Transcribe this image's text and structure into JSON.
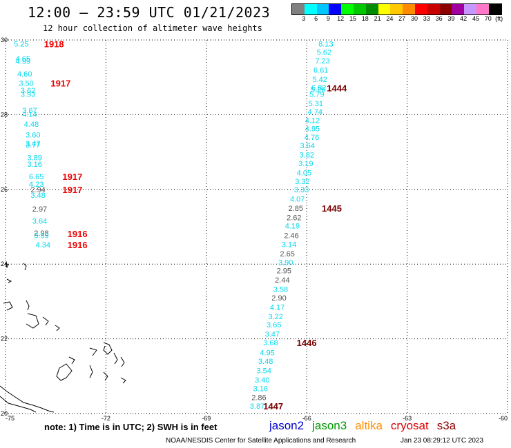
{
  "title": "12:00 – 23:59 UTC 01/21/2023",
  "subtitle": "12 hour collection of altimeter wave heights",
  "colorbar": {
    "colors": [
      "#808080",
      "#00ffff",
      "#00c8ff",
      "#0000ff",
      "#00ff00",
      "#00c800",
      "#008c00",
      "#ffff00",
      "#ffc800",
      "#ff8c00",
      "#ff0000",
      "#c80000",
      "#8c0000",
      "#a000a0",
      "#c896ff",
      "#ff78c8",
      "#000000"
    ],
    "labels": [
      "3",
      "6",
      "9",
      "12",
      "15",
      "18",
      "21",
      "24",
      "27",
      "30",
      "33",
      "36",
      "39",
      "42",
      "45",
      "70",
      "(ft)"
    ]
  },
  "axes": {
    "lon_ticks": [
      "-75",
      "-72",
      "-69",
      "-66",
      "-63",
      "-60"
    ],
    "lat_ticks": [
      "30",
      "28",
      "26",
      "24",
      "22",
      "20"
    ]
  },
  "tracks": {
    "east": [
      {
        "lon": -65.65,
        "lat": 29.9,
        "v": "8.13",
        "c": "cyan"
      },
      {
        "lon": -65.7,
        "lat": 29.68,
        "v": "5.62",
        "c": "cyan"
      },
      {
        "lon": -65.75,
        "lat": 29.45,
        "v": "7.23",
        "c": "cyan"
      },
      {
        "lon": -65.8,
        "lat": 29.2,
        "v": "6.61",
        "c": "cyan"
      },
      {
        "lon": -65.83,
        "lat": 28.95,
        "v": "5.42",
        "c": "cyan"
      },
      {
        "lon": -65.86,
        "lat": 28.73,
        "v": "6.82",
        "c": "cyan"
      },
      {
        "lon": -65.88,
        "lat": 28.68,
        "v": "5.26",
        "c": "cyan"
      },
      {
        "lon": -65.92,
        "lat": 28.55,
        "v": "5.79",
        "c": "cyan"
      },
      {
        "lon": -65.95,
        "lat": 28.3,
        "v": "5.31",
        "c": "cyan"
      },
      {
        "lon": -65.97,
        "lat": 28.08,
        "v": "4.74",
        "c": "cyan"
      },
      {
        "lon": -66.05,
        "lat": 27.85,
        "v": "4.12",
        "c": "cyan"
      },
      {
        "lon": -66.05,
        "lat": 27.63,
        "v": "4.95",
        "c": "cyan"
      },
      {
        "lon": -66.07,
        "lat": 27.4,
        "v": "4.76",
        "c": "cyan"
      },
      {
        "lon": -66.2,
        "lat": 27.18,
        "v": "3.64",
        "c": "cyan"
      },
      {
        "lon": -66.22,
        "lat": 26.93,
        "v": "3.82",
        "c": "cyan"
      },
      {
        "lon": -66.25,
        "lat": 26.7,
        "v": "3.19",
        "c": "cyan"
      },
      {
        "lon": -66.3,
        "lat": 26.45,
        "v": "4.05",
        "c": "cyan"
      },
      {
        "lon": -66.35,
        "lat": 26.22,
        "v": "3.32",
        "c": "cyan"
      },
      {
        "lon": -66.38,
        "lat": 26.0,
        "v": "3.33",
        "c": "cyan"
      },
      {
        "lon": -66.5,
        "lat": 25.75,
        "v": "4.07",
        "c": "cyan"
      },
      {
        "lon": -66.55,
        "lat": 25.5,
        "v": "2.85",
        "c": "gray"
      },
      {
        "lon": -66.6,
        "lat": 25.25,
        "v": "2.62",
        "c": "gray"
      },
      {
        "lon": -66.65,
        "lat": 25.03,
        "v": "4.19",
        "c": "cyan"
      },
      {
        "lon": -66.68,
        "lat": 24.77,
        "v": "2.46",
        "c": "gray"
      },
      {
        "lon": -66.75,
        "lat": 24.53,
        "v": "3.14",
        "c": "cyan"
      },
      {
        "lon": -66.8,
        "lat": 24.28,
        "v": "2.65",
        "c": "gray"
      },
      {
        "lon": -66.85,
        "lat": 24.05,
        "v": "3.90",
        "c": "cyan"
      },
      {
        "lon": -66.9,
        "lat": 23.83,
        "v": "2.95",
        "c": "gray"
      },
      {
        "lon": -66.95,
        "lat": 23.58,
        "v": "2.44",
        "c": "gray"
      },
      {
        "lon": -67.0,
        "lat": 23.33,
        "v": "3.58",
        "c": "cyan"
      },
      {
        "lon": -67.05,
        "lat": 23.1,
        "v": "2.90",
        "c": "gray"
      },
      {
        "lon": -67.1,
        "lat": 22.85,
        "v": "4.17",
        "c": "cyan"
      },
      {
        "lon": -67.15,
        "lat": 22.6,
        "v": "3.22",
        "c": "cyan"
      },
      {
        "lon": -67.2,
        "lat": 22.38,
        "v": "3.65",
        "c": "cyan"
      },
      {
        "lon": -67.25,
        "lat": 22.13,
        "v": "3.47",
        "c": "cyan"
      },
      {
        "lon": -67.3,
        "lat": 21.9,
        "v": "3.68",
        "c": "cyan"
      },
      {
        "lon": -67.4,
        "lat": 21.63,
        "v": "4.95",
        "c": "cyan"
      },
      {
        "lon": -67.45,
        "lat": 21.4,
        "v": "3.48",
        "c": "cyan"
      },
      {
        "lon": -67.5,
        "lat": 21.15,
        "v": "3.54",
        "c": "cyan"
      },
      {
        "lon": -67.55,
        "lat": 20.9,
        "v": "3.40",
        "c": "cyan"
      },
      {
        "lon": -67.6,
        "lat": 20.67,
        "v": "3.16",
        "c": "cyan"
      },
      {
        "lon": -67.65,
        "lat": 20.43,
        "v": "2.86",
        "c": "gray"
      },
      {
        "lon": -67.7,
        "lat": 20.2,
        "v": "3.87",
        "c": "cyan"
      }
    ],
    "west": [
      {
        "lon": -74.75,
        "lat": 29.9,
        "v": "5.25",
        "c": "cyan"
      },
      {
        "lon": -74.7,
        "lat": 29.5,
        "v": "4.65",
        "c": "cyan"
      },
      {
        "lon": -74.7,
        "lat": 29.44,
        "v": "4.99",
        "c": "cyan"
      },
      {
        "lon": -74.65,
        "lat": 29.1,
        "v": "4.60",
        "c": "cyan"
      },
      {
        "lon": -74.6,
        "lat": 28.85,
        "v": "3.50",
        "c": "cyan"
      },
      {
        "lon": -74.55,
        "lat": 28.65,
        "v": "3.62",
        "c": "cyan"
      },
      {
        "lon": -74.55,
        "lat": 28.55,
        "v": "3.93",
        "c": "cyan"
      },
      {
        "lon": -74.5,
        "lat": 28.12,
        "v": "3.67",
        "c": "cyan"
      },
      {
        "lon": -74.5,
        "lat": 28.02,
        "v": "4.14",
        "c": "cyan"
      },
      {
        "lon": -74.45,
        "lat": 27.75,
        "v": "4.48",
        "c": "cyan"
      },
      {
        "lon": -74.4,
        "lat": 27.46,
        "v": "3.60",
        "c": "cyan"
      },
      {
        "lon": -74.4,
        "lat": 27.23,
        "v": "3.47",
        "c": "cyan"
      },
      {
        "lon": -74.4,
        "lat": 27.2,
        "v": "3.77",
        "c": "cyan"
      },
      {
        "lon": -74.35,
        "lat": 26.85,
        "v": "3.89",
        "c": "cyan"
      },
      {
        "lon": -74.35,
        "lat": 26.68,
        "v": "3.16",
        "c": "cyan"
      },
      {
        "lon": -74.3,
        "lat": 26.35,
        "v": "6.65",
        "c": "cyan"
      },
      {
        "lon": -74.3,
        "lat": 26.14,
        "v": "4.23",
        "c": "cyan"
      },
      {
        "lon": -74.25,
        "lat": 26.0,
        "v": "2.94",
        "c": "gray"
      },
      {
        "lon": -74.25,
        "lat": 25.85,
        "v": "3.48",
        "c": "cyan"
      },
      {
        "lon": -74.2,
        "lat": 25.48,
        "v": "2.97",
        "c": "gray"
      },
      {
        "lon": -74.2,
        "lat": 25.16,
        "v": "3.64",
        "c": "cyan"
      },
      {
        "lon": -74.15,
        "lat": 24.83,
        "v": "2.98",
        "c": "gray"
      },
      {
        "lon": -74.15,
        "lat": 24.77,
        "v": "3.59",
        "c": "cyan"
      },
      {
        "lon": -74.1,
        "lat": 24.52,
        "v": "4.34",
        "c": "cyan"
      }
    ],
    "time_marks": [
      {
        "lon": -73.85,
        "lat": 29.9,
        "t": "1918",
        "c": "#ee0000"
      },
      {
        "lon": -73.65,
        "lat": 28.85,
        "t": "1917",
        "c": "#ee0000"
      },
      {
        "lon": -73.3,
        "lat": 26.35,
        "t": "1917",
        "c": "#ee0000"
      },
      {
        "lon": -73.3,
        "lat": 26.0,
        "t": "1917",
        "c": "#ee0000"
      },
      {
        "lon": -73.15,
        "lat": 24.82,
        "t": "1916",
        "c": "#ee0000"
      },
      {
        "lon": -73.15,
        "lat": 24.52,
        "t": "1916",
        "c": "#ee0000"
      },
      {
        "lon": -65.4,
        "lat": 28.72,
        "t": "1444",
        "c": "#7a0000"
      },
      {
        "lon": -65.55,
        "lat": 25.5,
        "t": "1445",
        "c": "#7a0000"
      },
      {
        "lon": -66.3,
        "lat": 21.9,
        "t": "1446",
        "c": "#7a0000"
      },
      {
        "lon": -67.3,
        "lat": 20.2,
        "t": "1447",
        "c": "#7a0000"
      }
    ]
  },
  "note": "note:  1) Time is in UTC;  2) SWH is in feet",
  "satellites": [
    {
      "name": "jason2",
      "color": "#0000cc"
    },
    {
      "name": "jason3",
      "color": "#009900"
    },
    {
      "name": "altika",
      "color": "#ff8c00"
    },
    {
      "name": "cryosat",
      "color": "#dd0000"
    },
    {
      "name": "s3a",
      "color": "#8b0000"
    }
  ],
  "credit": "NOAA/NESDIS Center for Satellite Applications and Research",
  "timestamp": "Jan 23 08:29:12 UTC 2023"
}
